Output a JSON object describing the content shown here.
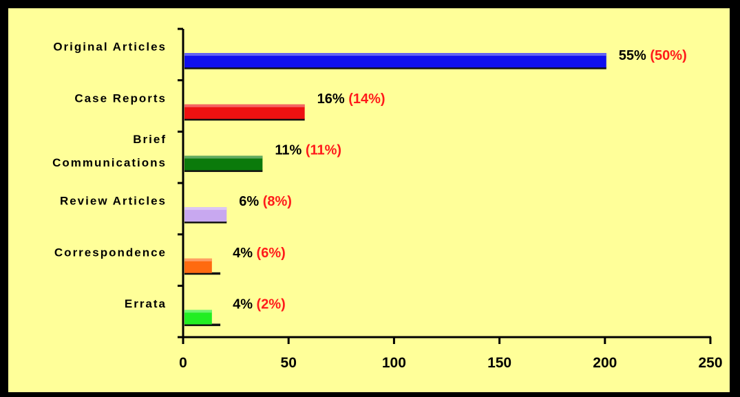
{
  "chart_data": {
    "type": "bar",
    "orientation": "horizontal",
    "title": "",
    "xlabel": "",
    "ylabel": "",
    "xlim": [
      0,
      250
    ],
    "x_ticks": [
      0,
      50,
      100,
      150,
      200,
      250
    ],
    "categories": [
      "Original Articles",
      "Case Reports",
      "Brief Communications",
      "Review Articles",
      "Correspondence",
      "Errata"
    ],
    "category_lines": [
      [
        "Original Articles"
      ],
      [
        "Case Reports"
      ],
      [
        "Brief",
        "Communications"
      ],
      [
        "Review Articles"
      ],
      [
        "Correspondence"
      ],
      [
        "Errata"
      ]
    ],
    "series": [
      {
        "values": [
          200,
          57,
          37,
          20,
          13,
          13
        ],
        "colors": [
          "#1010ee",
          "#ee1111",
          "#0b7a0b",
          "#c8a8f0",
          "#ff6a10",
          "#22ee22"
        ]
      },
      {
        "values": [
          200,
          57,
          37,
          20,
          17,
          17
        ],
        "color": "#111111"
      }
    ],
    "data_labels": [
      {
        "primary": "55%",
        "secondary": "(50%)"
      },
      {
        "primary": "16%",
        "secondary": "(14%)"
      },
      {
        "primary": "11%",
        "secondary": "(11%)"
      },
      {
        "primary": "6%",
        "secondary": "(8%)"
      },
      {
        "primary": "4%",
        "secondary": "(6%)"
      },
      {
        "primary": "4%",
        "secondary": "(2%)"
      }
    ],
    "grid": false,
    "background": "#ffff99",
    "label_colors": {
      "primary": "#000000",
      "secondary": "#ff1a1a"
    }
  }
}
